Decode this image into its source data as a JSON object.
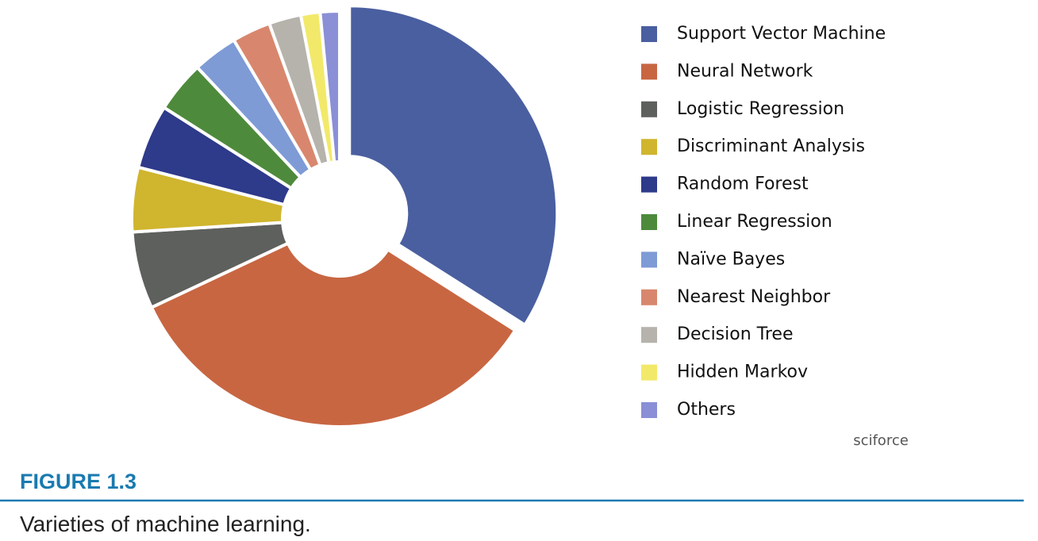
{
  "chart_data": {
    "type": "pie",
    "categories": [
      "Support Vector Machine",
      "Neural Network",
      "Logistic Regression",
      "Discriminant Analysis",
      "Random Forest",
      "Linear Regression",
      "Naïve Bayes",
      "Nearest Neighbor",
      "Decision Tree",
      "Hidden Markov",
      "Others"
    ],
    "values": [
      34,
      34,
      6,
      5,
      5,
      4,
      3.5,
      3,
      2.5,
      1.5,
      1.5
    ],
    "colors": [
      "#4a5fa0",
      "#c86642",
      "#5e605e",
      "#d0b52e",
      "#2e3a8a",
      "#4e8a3c",
      "#7e9bd6",
      "#d8876e",
      "#b5b3ab",
      "#f2e96a",
      "#8a8fd6"
    ],
    "source": "sciforce"
  },
  "figure": {
    "label": "FIGURE 1.3",
    "caption": "Varieties of machine learning."
  }
}
